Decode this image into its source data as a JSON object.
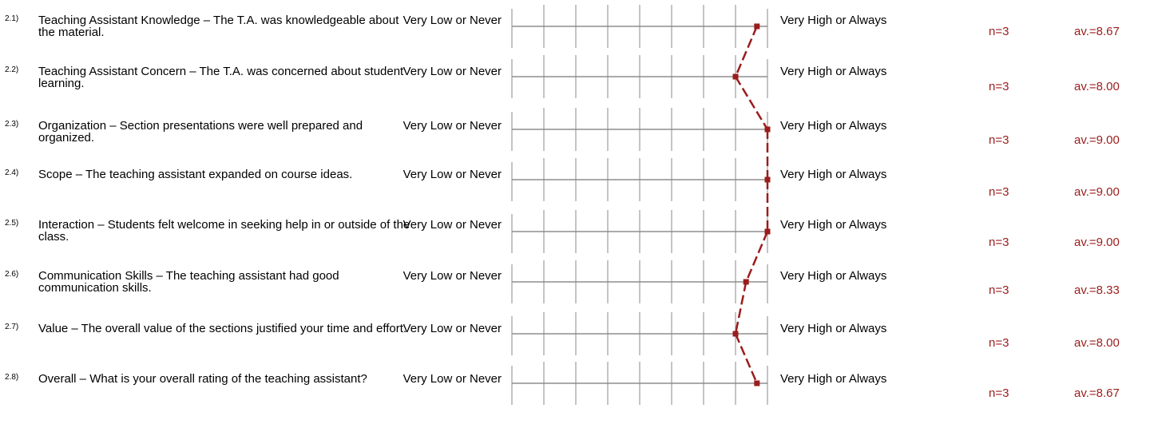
{
  "chart_data": {
    "type": "line",
    "scale_min": 1,
    "scale_max": 9,
    "low_label": "Very Low or Never",
    "high_label": "Very High or Always",
    "line_color": "#9b1c1c",
    "grid": true,
    "rows": [
      {
        "num": "2.1)",
        "question": "Teaching Assistant Knowledge – The T.A. was knowledgeable about the material.",
        "low_label": "Very Low or Never",
        "high_label": "Very High or Always",
        "n_text": "n=3",
        "avg_text": "av.=8.67",
        "avg": 8.67
      },
      {
        "num": "2.2)",
        "question": "Teaching Assistant Concern – The T.A. was concerned about student learning.",
        "low_label": "Very Low or Never",
        "high_label": "Very High or Always",
        "n_text": "n=3",
        "avg_text": "av.=8.00",
        "avg": 8.0
      },
      {
        "num": "2.3)",
        "question": "Organization – Section presentations were well prepared and organized.",
        "low_label": "Very Low or Never",
        "high_label": "Very High or Always",
        "n_text": "n=3",
        "avg_text": "av.=9.00",
        "avg": 9.0
      },
      {
        "num": "2.4)",
        "question": "Scope – The teaching assistant expanded on course ideas.",
        "low_label": "Very Low or Never",
        "high_label": "Very High or Always",
        "n_text": "n=3",
        "avg_text": "av.=9.00",
        "avg": 9.0
      },
      {
        "num": "2.5)",
        "question": "Interaction – Students felt welcome in seeking help in or outside of the class.",
        "low_label": "Very Low or Never",
        "high_label": "Very High or Always",
        "n_text": "n=3",
        "avg_text": "av.=9.00",
        "avg": 9.0
      },
      {
        "num": "2.6)",
        "question": "Communication Skills – The teaching assistant had good communication skills.",
        "low_label": "Very Low or Never",
        "high_label": "Very High or Always",
        "n_text": "n=3",
        "avg_text": "av.=8.33",
        "avg": 8.33
      },
      {
        "num": "2.7)",
        "question": "Value – The overall value of the sections justified your time and effort.",
        "low_label": "Very Low or Never",
        "high_label": "Very High or Always",
        "n_text": "n=3",
        "avg_text": "av.=8.00",
        "avg": 8.0
      },
      {
        "num": "2.8)",
        "question": "Overall – What is your overall rating of the teaching assistant?",
        "low_label": "Very Low or Never",
        "high_label": "Very High or Always",
        "n_text": "n=3",
        "avg_text": "av.=8.67",
        "avg": 8.67
      }
    ]
  }
}
